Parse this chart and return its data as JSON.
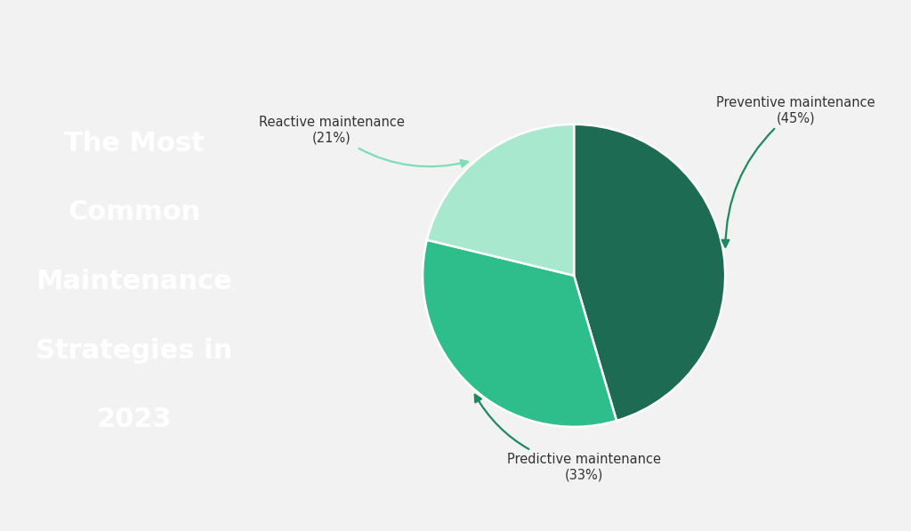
{
  "title_lines": [
    "The Most",
    "Common",
    "Maintenance",
    "Strategies in",
    "2023"
  ],
  "left_bg_color": "#3ECFA0",
  "right_bg_color": "#F2F2F2",
  "slices": [
    {
      "label": "Preventive maintenance",
      "pct": 45,
      "color": "#1D6B52"
    },
    {
      "label": "Predictive maintenance",
      "pct": 33,
      "color": "#2DBE8C"
    },
    {
      "label": "Reactive maintenance",
      "pct": 21,
      "color": "#A8E8CE"
    }
  ],
  "title_color": "#FFFFFF",
  "label_color": "#333333",
  "arrow_color_dark": "#1D8A5E",
  "arrow_color_light": "#7DDDB8",
  "font_family": "DejaVu Sans"
}
